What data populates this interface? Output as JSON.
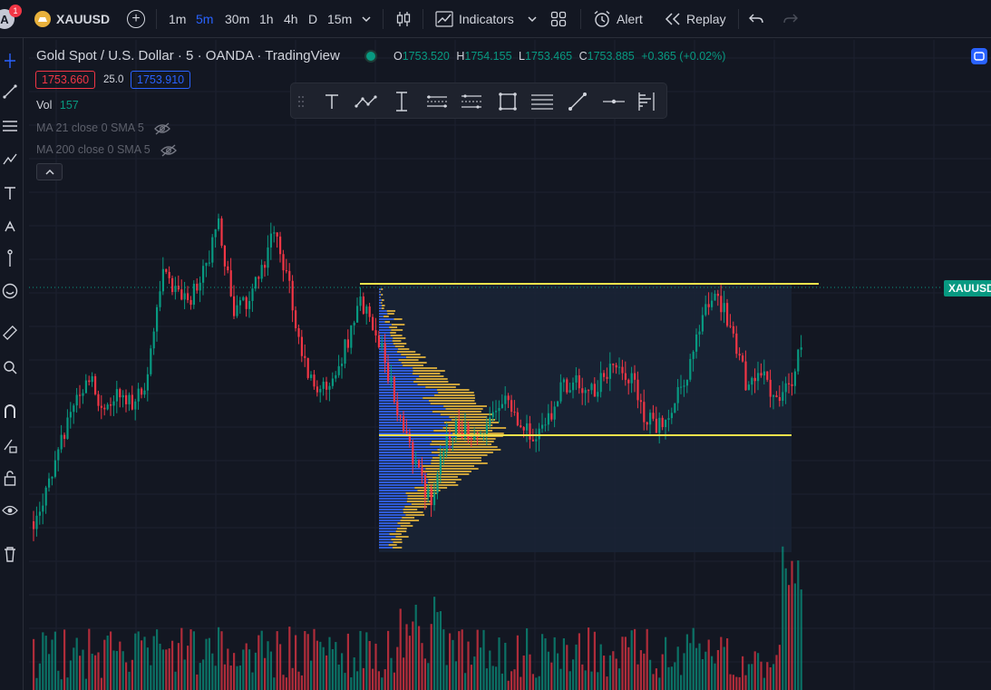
{
  "header": {
    "notification_count": "1",
    "avatar_letter": "A",
    "symbol": "XAUUSD",
    "intervals": [
      "1m",
      "5m",
      "30m",
      "1h",
      "4h",
      "D",
      "15m"
    ],
    "active_interval": "5m",
    "indicators_label": "Indicators",
    "alert_label": "Alert",
    "replay_label": "Replay"
  },
  "legend": {
    "title": "Gold Spot / U.S. Dollar · 5 · OANDA · TradingView",
    "open_key": "O",
    "open": "1753.520",
    "high_key": "H",
    "high": "1754.155",
    "low_key": "L",
    "low": "1753.465",
    "close_key": "C",
    "close": "1753.885",
    "change": "+0.365 (+0.02%)",
    "bid": "1753.660",
    "spread": "25.0",
    "ask": "1753.910",
    "vol_label": "Vol",
    "vol_value": "157",
    "ma21": "MA 21 close 0 SMA 5",
    "ma200": "MA 200 close 0 SMA 5"
  },
  "price_tag": "XAUUSD",
  "colors": {
    "up": "#089981",
    "down": "#f23645",
    "accent": "#2962ff",
    "level_line": "#f5e24b",
    "profile_up": "#2f5bd6",
    "profile_down": "#c9a13b"
  },
  "icons": {
    "left_toolbar": [
      "cursor-icon",
      "trend-line-icon",
      "fib-icon",
      "pattern-icon",
      "text-icon",
      "brush-icon",
      "pin-icon",
      "emoji-icon",
      "ruler-icon",
      "zoom-icon",
      "magnet-icon",
      "lock-drawing-icon",
      "lock-icon",
      "eye-icon",
      "trash-icon"
    ],
    "drawing_toolbar": [
      "text-tool-icon",
      "path-tool-icon",
      "date-range-icon",
      "parallel-channel-icon",
      "regression-icon",
      "rectangle-icon",
      "horizontal-lines-icon",
      "trend-line-tool-icon",
      "horizontal-ray-icon",
      "fixed-range-profile-icon"
    ]
  }
}
